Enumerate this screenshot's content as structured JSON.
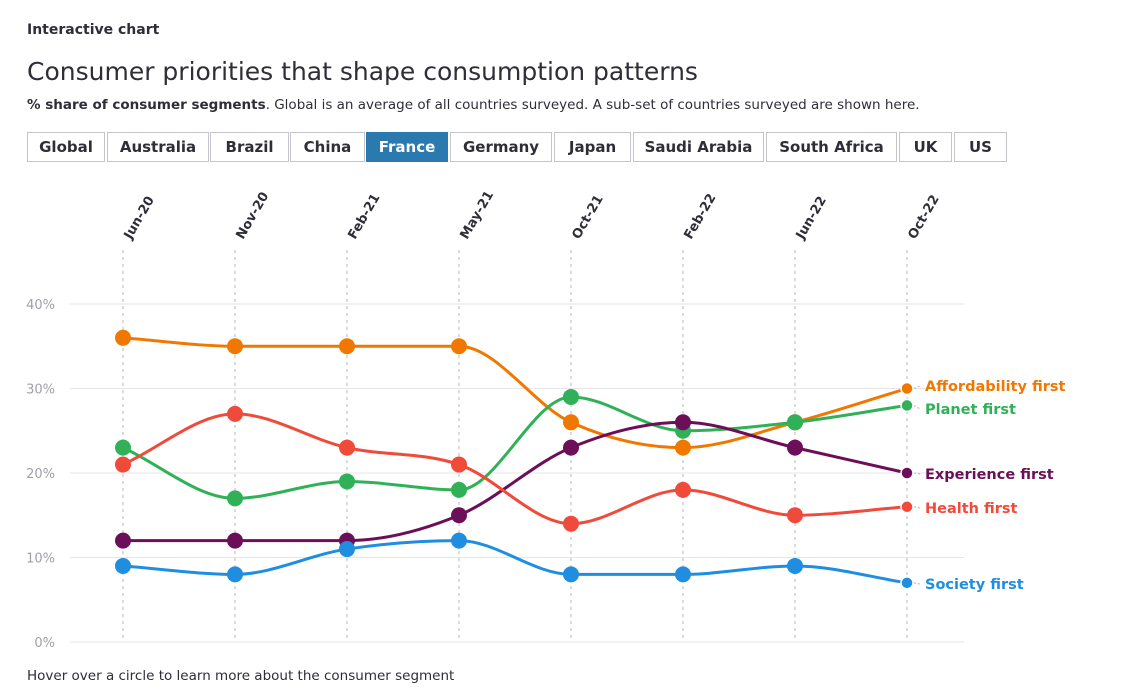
{
  "header": {
    "kicker": "Interactive chart",
    "title": "Consumer priorities that shape consumption patterns",
    "subtitle_bold": "% share of consumer segments",
    "subtitle_rest": ". Global is an average of all countries surveyed. A sub-set of countries surveyed are shown here."
  },
  "tabs": [
    {
      "label": "Global",
      "active": false
    },
    {
      "label": "Australia",
      "active": false
    },
    {
      "label": "Brazil",
      "active": false
    },
    {
      "label": "China",
      "active": false
    },
    {
      "label": "France",
      "active": true
    },
    {
      "label": "Germany",
      "active": false
    },
    {
      "label": "Japan",
      "active": false
    },
    {
      "label": "Saudi Arabia",
      "active": false
    },
    {
      "label": "South Africa",
      "active": false
    },
    {
      "label": "UK",
      "active": false
    },
    {
      "label": "US",
      "active": false
    }
  ],
  "footer": "Hover over a circle to learn more about the consumer segment",
  "chart_data": {
    "type": "line",
    "x": [
      "Jun-20",
      "Nov-20",
      "Feb-21",
      "May-21",
      "Oct-21",
      "Feb-22",
      "Jun-22",
      "Oct-22"
    ],
    "y_ticks": [
      "0%",
      "10%",
      "20%",
      "30%",
      "40%"
    ],
    "ylim": [
      0,
      40
    ],
    "grid": true,
    "legend_placement": "right end labels",
    "series": [
      {
        "name": "Affordability first",
        "color": "#f07800",
        "values": [
          36,
          35,
          35,
          35,
          26,
          23,
          26,
          30
        ]
      },
      {
        "name": "Planet first",
        "color": "#30b158",
        "values": [
          23,
          17,
          19,
          18,
          29,
          25,
          26,
          28
        ]
      },
      {
        "name": "Experience first",
        "color": "#6c0f58",
        "values": [
          12,
          12,
          12,
          15,
          23,
          26,
          23,
          20
        ]
      },
      {
        "name": "Health first",
        "color": "#f04a3a",
        "values": [
          21,
          27,
          23,
          21,
          14,
          18,
          15,
          16
        ]
      },
      {
        "name": "Society first",
        "color": "#1f8ee0",
        "values": [
          9,
          8,
          11,
          12,
          8,
          8,
          9,
          7
        ]
      }
    ]
  }
}
